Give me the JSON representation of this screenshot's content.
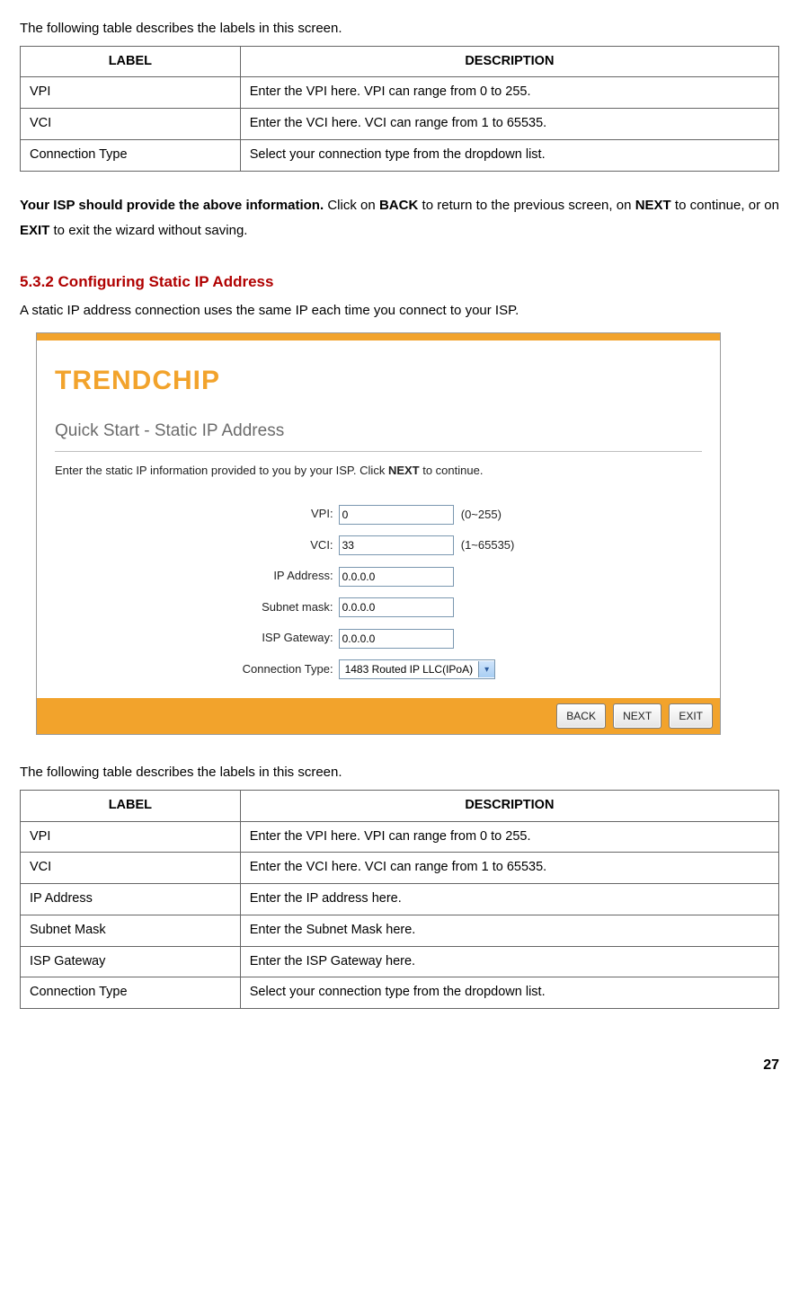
{
  "table1_intro": "The following table describes the labels in this screen.",
  "table1_headers": {
    "label": "LABEL",
    "desc": "DESCRIPTION"
  },
  "table1_rows": [
    {
      "label": "VPI",
      "desc": "Enter the VPI here. VPI can range from 0 to 255."
    },
    {
      "label": "VCI",
      "desc": "Enter the VCI here. VCI can range from 1 to 65535."
    },
    {
      "label": "Connection Type",
      "desc": "Select your connection type from the dropdown list."
    }
  ],
  "isp_note": {
    "p1": "Your ISP should provide the above information.",
    "p2": " Click on ",
    "back": "BACK",
    "p3": " to return to the previous screen, on ",
    "next": "NEXT",
    "p4": " to continue, or on ",
    "exit": "EXIT",
    "p5": " to exit the wizard without saving."
  },
  "section_heading": "5.3.2 Configuring Static IP Address",
  "static_desc": "A static IP address connection uses the same IP each time you connect to your ISP.",
  "panel": {
    "brand": "TRENDCHIP",
    "title": "Quick Start - Static IP Address",
    "instr_pre": "Enter the static IP information provided to you by your ISP. Click ",
    "instr_bold": "NEXT",
    "instr_post": " to continue.",
    "fields": {
      "vpi_label": "VPI:",
      "vpi_value": "0",
      "vpi_hint": "(0~255)",
      "vci_label": "VCI:",
      "vci_value": "33",
      "vci_hint": "(1~65535)",
      "ip_label": "IP Address:",
      "ip_value": "0.0.0.0",
      "mask_label": "Subnet mask:",
      "mask_value": "0.0.0.0",
      "gw_label": "ISP Gateway:",
      "gw_value": "0.0.0.0",
      "ct_label": "Connection Type:",
      "ct_value": "1483 Routed IP LLC(IPoA)"
    },
    "buttons": {
      "back": "BACK",
      "next": "NEXT",
      "exit": "EXIT"
    },
    "colors": {
      "accent": "#f2a32c",
      "brand_text": "#f2a32c"
    }
  },
  "table2_intro": "The following table describes the labels in this screen.",
  "table2_headers": {
    "label": "LABEL",
    "desc": "DESCRIPTION"
  },
  "table2_rows": [
    {
      "label": "VPI",
      "desc": "Enter the VPI here. VPI can range from 0 to 255."
    },
    {
      "label": "VCI",
      "desc": "Enter the VCI here. VCI can range from 1 to 65535."
    },
    {
      "label": "IP Address",
      "desc": "Enter the IP address here."
    },
    {
      "label": "Subnet Mask",
      "desc": "Enter the Subnet Mask here."
    },
    {
      "label": "ISP Gateway",
      "desc": "Enter the ISP Gateway here."
    },
    {
      "label": "Connection Type",
      "desc": "Select your connection type from the dropdown list."
    }
  ],
  "page_number": "27"
}
